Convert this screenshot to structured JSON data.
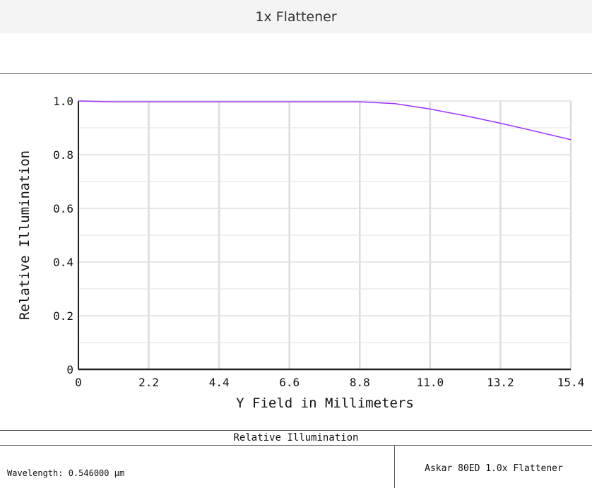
{
  "window": {
    "title": "1x Flattener"
  },
  "footer": {
    "caption": "Relative Illumination",
    "wavelength": "Wavelength: 0.546000 µm",
    "lens_name": "Askar 80ED 1.0x Flattener"
  },
  "chart_data": {
    "type": "line",
    "title": "",
    "xlabel": "Y Field in Millimeters",
    "ylabel": "Relative Illumination",
    "xlim": [
      0,
      15.4
    ],
    "ylim": [
      0,
      1.0
    ],
    "x_ticks": [
      "0",
      "2.2",
      "4.4",
      "6.6",
      "8.8",
      "11.0",
      "13.2",
      "15.4"
    ],
    "y_ticks": [
      "0",
      "0.2",
      "0.4",
      "0.6",
      "0.8",
      "1.0"
    ],
    "grid": true,
    "series": [
      {
        "color": "#9b30ff",
        "x": [
          0,
          1.1,
          2.2,
          4.4,
          6.6,
          8.8,
          9.9,
          11.0,
          12.1,
          13.2,
          14.3,
          15.4
        ],
        "y": [
          1.0,
          0.997,
          0.997,
          0.997,
          0.997,
          0.997,
          0.99,
          0.97,
          0.945,
          0.917,
          0.887,
          0.856
        ]
      }
    ]
  }
}
